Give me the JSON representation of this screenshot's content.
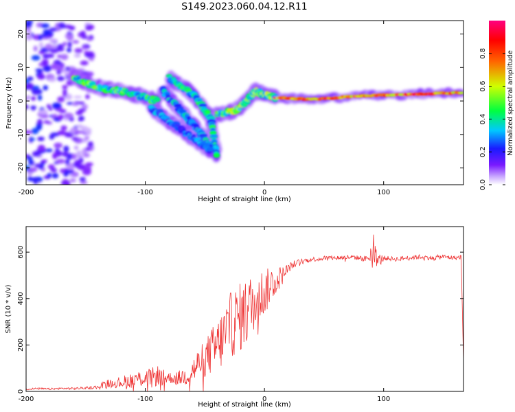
{
  "figure_title": "S149.2023.060.04.12.R11",
  "chart_data": [
    {
      "type": "heatmap",
      "title": "S149.2023.060.04.12.R11",
      "xlabel": "Height of straight line (km)",
      "ylabel": "Frequency (Hz)",
      "xlim": [
        -200,
        167
      ],
      "ylim": [
        -25,
        24
      ],
      "xticks": [
        -200,
        -100,
        0,
        100
      ],
      "yticks": [
        -20,
        -10,
        0,
        10,
        20
      ],
      "colorbar": {
        "label": "Normalized spectral amplitude",
        "range": [
          0,
          1
        ],
        "ticks": [
          0.0,
          0.2,
          0.4,
          0.6,
          0.8
        ],
        "tick_labels": [
          "0.0",
          "0.2",
          "0.4",
          "0.6",
          "0.8"
        ],
        "colors": [
          "#ffffff",
          "#c9a8ff",
          "#7a1aff",
          "#1a1aff",
          "#00c8ff",
          "#00ff40",
          "#d0ff00",
          "#ff6600",
          "#ff0000",
          "#ff0080"
        ]
      },
      "features": [
        {
          "name": "diffuse noise region",
          "x_range": [
            -200,
            -145
          ],
          "freq_range": [
            -25,
            24
          ],
          "amplitude": 0.15
        },
        {
          "name": "main ridge segment 1",
          "x": [
            -160,
            -140,
            -120,
            -100,
            -90
          ],
          "freq": [
            7,
            4,
            3,
            1,
            0
          ],
          "amplitude": 0.4
        },
        {
          "name": "branch streak A",
          "x": [
            -80,
            -60,
            -45,
            -40
          ],
          "freq": [
            7,
            2,
            -5,
            -17
          ],
          "amplitude": 0.35
        },
        {
          "name": "branch streak B",
          "x": [
            -85,
            -70,
            -55,
            -45
          ],
          "freq": [
            3,
            -3,
            -9,
            -14
          ],
          "amplitude": 0.3
        },
        {
          "name": "dispersed lower streak",
          "x": [
            -95,
            -80,
            -60,
            -45
          ],
          "freq": [
            -2,
            -6,
            -11,
            -15
          ],
          "amplitude": 0.25
        },
        {
          "name": "ridge recovery",
          "x": [
            -40,
            -25,
            -15,
            -8,
            0,
            10
          ],
          "freq": [
            -4,
            -3,
            0,
            3,
            2,
            1
          ],
          "amplitude": 0.45
        },
        {
          "name": "stable ridge",
          "x": [
            10,
            40,
            80,
            120,
            167
          ],
          "freq": [
            1,
            0.5,
            1.5,
            2,
            2.5
          ],
          "amplitude": 0.9
        }
      ]
    },
    {
      "type": "line",
      "xlabel": "Height of straight line (km)",
      "ylabel": "SNR (10 * v/v)",
      "xlim": [
        -200,
        167
      ],
      "ylim": [
        0,
        710
      ],
      "xticks": [
        -200,
        -100,
        0,
        100
      ],
      "yticks": [
        0,
        200,
        400,
        600
      ],
      "color": "#ee3333",
      "x": [
        -200,
        -190,
        -180,
        -170,
        -160,
        -150,
        -140,
        -135,
        -130,
        -120,
        -110,
        -100,
        -95,
        -90,
        -85,
        -80,
        -75,
        -70,
        -65,
        -60,
        -55,
        -50,
        -45,
        -40,
        -35,
        -30,
        -25,
        -20,
        -15,
        -10,
        -5,
        0,
        5,
        10,
        15,
        20,
        25,
        30,
        35,
        40,
        45,
        50,
        60,
        70,
        80,
        85,
        90,
        92,
        95,
        100,
        110,
        120,
        130,
        140,
        150,
        160,
        165,
        167
      ],
      "y": [
        10,
        12,
        10,
        13,
        12,
        15,
        18,
        30,
        35,
        40,
        50,
        60,
        55,
        70,
        60,
        60,
        55,
        60,
        70,
        90,
        120,
        140,
        170,
        190,
        230,
        280,
        300,
        320,
        350,
        380,
        420,
        420,
        460,
        480,
        500,
        530,
        550,
        560,
        565,
        570,
        570,
        575,
        575,
        578,
        575,
        570,
        600,
        640,
        560,
        575,
        570,
        575,
        580,
        575,
        580,
        575,
        580,
        130
      ],
      "noise_amplitude": [
        4,
        4,
        4,
        4,
        5,
        5,
        8,
        15,
        20,
        25,
        35,
        40,
        45,
        45,
        35,
        25,
        25,
        35,
        45,
        60,
        70,
        80,
        100,
        120,
        130,
        140,
        150,
        150,
        140,
        130,
        120,
        100,
        80,
        60,
        40,
        20,
        15,
        10,
        10,
        10,
        10,
        10,
        10,
        10,
        10,
        15,
        40,
        60,
        40,
        10,
        10,
        10,
        10,
        10,
        10,
        10,
        10,
        5
      ]
    }
  ]
}
